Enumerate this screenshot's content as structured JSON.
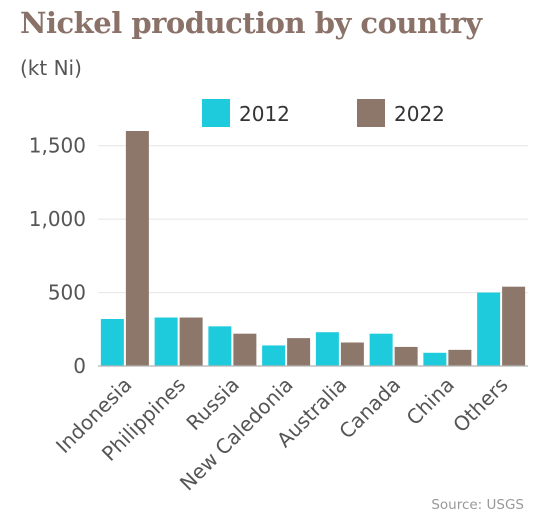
{
  "title": "Nickel production by country",
  "subtitle": "(kt Ni)",
  "source": "Source: USGS",
  "colors": {
    "series_2012": "#1dcbdc",
    "series_2022": "#8d776b",
    "title": "#8a7268",
    "grid": "#e6e6e6",
    "axis": "#b5b5b5"
  },
  "chart_data": {
    "type": "bar",
    "title": "Nickel production by country",
    "subtitle": "(kt Ni)",
    "categories": [
      "Indonesia",
      "Philippines",
      "Russia",
      "New Caledonia",
      "Australia",
      "Canada",
      "China",
      "Others"
    ],
    "series": [
      {
        "name": "2012",
        "color": "#1dcbdc",
        "values": [
          320,
          330,
          270,
          140,
          230,
          220,
          90,
          500
        ]
      },
      {
        "name": "2022",
        "color": "#8d776b",
        "values": [
          1600,
          330,
          220,
          190,
          160,
          130,
          110,
          540
        ]
      }
    ],
    "yticks": [
      0,
      500,
      1000,
      1500
    ],
    "ytick_labels": [
      "0",
      "500",
      "1,000",
      "1,500"
    ],
    "ylim": [
      0,
      1600
    ],
    "grid": true,
    "legend_position": "top"
  }
}
